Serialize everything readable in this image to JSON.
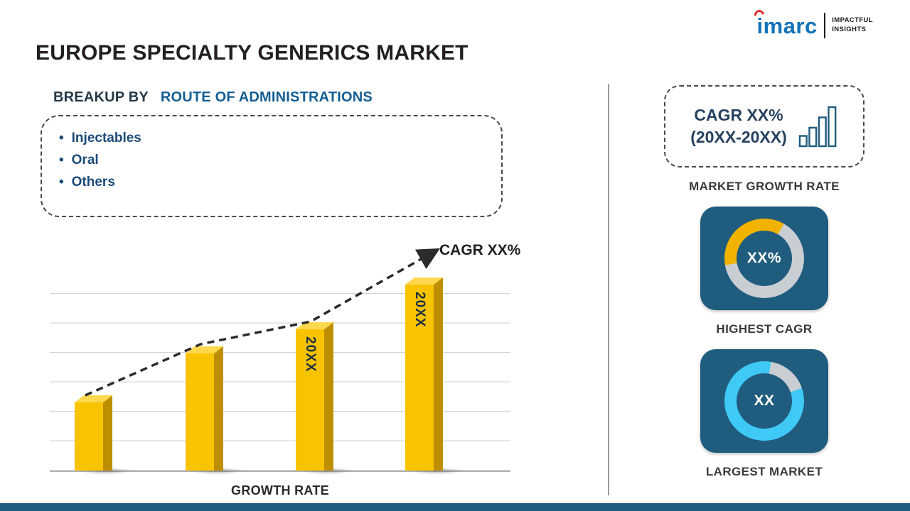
{
  "page": {
    "title": "EUROPE SPECIALTY GENERICS MARKET"
  },
  "logo": {
    "brand": "imarc",
    "tagline_top": "IMPACTFUL",
    "tagline_bottom": "INSIGHTS"
  },
  "breakup": {
    "heading_prefix": "BREAKUP BY",
    "heading_highlight": "ROUTE OF ADMINISTRATIONS",
    "items": [
      "Injectables",
      "Oral",
      "Others"
    ]
  },
  "chart_data": [
    {
      "type": "bar",
      "title": "",
      "xlabel": "GROWTH RATE",
      "ylabel": "",
      "categories": [
        "",
        "",
        "20XX",
        "20XX"
      ],
      "values": [
        38,
        63,
        75,
        98
      ],
      "ylim": [
        0,
        100
      ],
      "grid": true,
      "legend": false,
      "annotation": "CAGR XX%",
      "trendline": "dashed ascending arrow across bar tops",
      "bar_color": "#f8c301"
    },
    {
      "type": "pie",
      "variant": "donut",
      "title": "HIGHEST CAGR",
      "center_text": "XX%",
      "start_deg": 260,
      "slices": [
        {
          "name": "highlight",
          "value": 36,
          "color": "#f2b200"
        },
        {
          "name": "remainder",
          "value": 64,
          "color": "#c9ced3"
        }
      ]
    },
    {
      "type": "pie",
      "variant": "donut",
      "title": "LARGEST MARKET",
      "center_text": "XX",
      "start_deg": 71,
      "slices": [
        {
          "name": "highlight",
          "value": 83,
          "color": "#3fc9f5"
        },
        {
          "name": "remainder",
          "value": 17,
          "color": "#c9ced3"
        }
      ]
    }
  ],
  "sidebar": {
    "growth_card": {
      "line1": "CAGR XX%",
      "line2": "(20XX-20XX)",
      "caption": "MARKET GROWTH RATE"
    },
    "highest_cagr": {
      "value": "XX%",
      "caption": "HIGHEST CAGR"
    },
    "largest_market": {
      "value": "XX",
      "caption": "LARGEST MARKET"
    }
  },
  "colors": {
    "navy": "#1f5c7e",
    "gold": "#f8c301",
    "cyan": "#3fc9f5",
    "heading_blue": "#135e92",
    "text_dark": "#231f20"
  }
}
